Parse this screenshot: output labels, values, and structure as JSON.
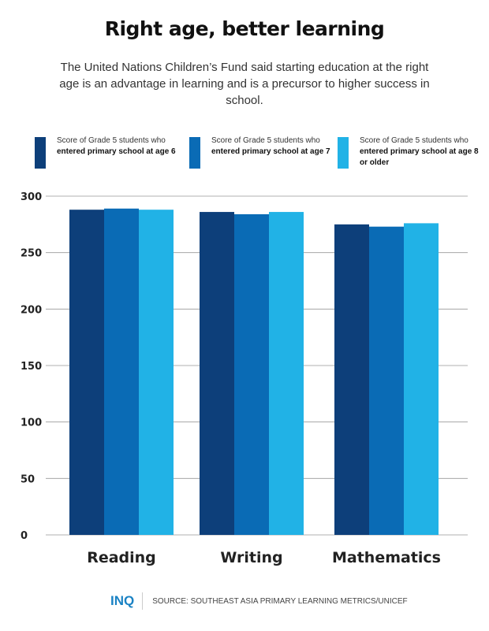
{
  "title": "Right age, better learning",
  "subtitle": "The United Nations Children’s Fund said starting education at the right age is an advantage in learning and is a precursor to higher success in school.",
  "legend": [
    {
      "prefix": "Score of Grade 5 students who ",
      "bold": "entered primary school at age 6",
      "color": "#0d3f7a"
    },
    {
      "prefix": "Score of Grade 5 students who ",
      "bold": "entered primary school at age 7",
      "color": "#0a6bb5"
    },
    {
      "prefix": "Score of Grade 5 students who ",
      "bold": "entered primary school at age 8 or older",
      "color": "#21b2e6"
    }
  ],
  "chart_data": {
    "type": "bar",
    "categories": [
      "Reading",
      "Writing",
      "Mathematics"
    ],
    "series": [
      {
        "name": "Score of Grade 5 students who entered primary school at age 6",
        "values": [
          288,
          286,
          275
        ],
        "color": "#0d3f7a"
      },
      {
        "name": "Score of Grade 5 students who entered primary school at age 7",
        "values": [
          289,
          284,
          273
        ],
        "color": "#0a6bb5"
      },
      {
        "name": "Score of Grade 5 students who entered primary school at age 8 or older",
        "values": [
          288,
          286,
          276
        ],
        "color": "#21b2e6"
      }
    ],
    "yticks": [
      0,
      50,
      100,
      150,
      200,
      250,
      300
    ],
    "ylim": [
      0,
      300
    ],
    "grid": true,
    "legend_position": "top"
  },
  "footer": {
    "logo": "INQ",
    "source": "SOURCE: SOUTHEAST ASIA PRIMARY LEARNING METRICS/UNICEF"
  }
}
